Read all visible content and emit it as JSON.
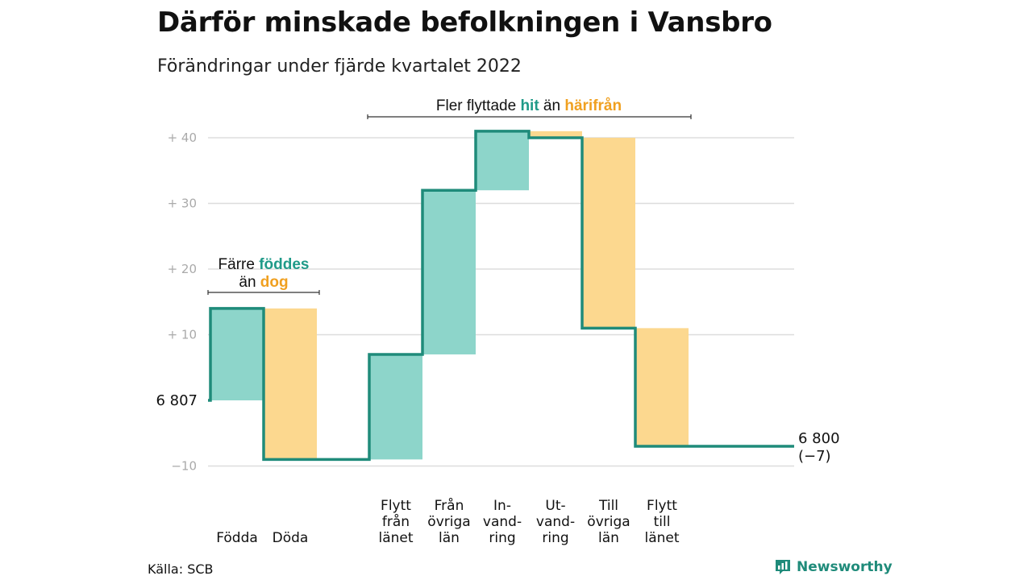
{
  "chart_data": {
    "type": "waterfall",
    "title": "Därför minskade befolkningen i Vansbro",
    "subtitle": "Förändringar under fjärde kvartalet 2022",
    "start_value": 6807,
    "start_label": "6 807",
    "end_value": 6800,
    "end_label": "6 800",
    "end_change_label": "(−7)",
    "y_ticks": [
      {
        "value": 40,
        "label": "+ 40"
      },
      {
        "value": 30,
        "label": "+ 30"
      },
      {
        "value": 20,
        "label": "+ 20"
      },
      {
        "value": 10,
        "label": "+ 10"
      },
      {
        "value": -10,
        "label": "−10"
      }
    ],
    "ylim": [
      -10,
      41
    ],
    "grid": true,
    "categories": [
      {
        "label_lines": [
          "Födda"
        ],
        "change": 14
      },
      {
        "label_lines": [
          "Döda"
        ],
        "change": -23
      },
      {
        "label_lines": [
          "Flytt",
          "från",
          "länet"
        ],
        "change": 16
      },
      {
        "label_lines": [
          "Från",
          "övriga",
          "län"
        ],
        "change": 25
      },
      {
        "label_lines": [
          "In-",
          "vand-",
          "ring"
        ],
        "change": 9
      },
      {
        "label_lines": [
          "Ut-",
          "vand-",
          "ring"
        ],
        "change": -1
      },
      {
        "label_lines": [
          "Till",
          "övriga",
          "län"
        ],
        "change": -29
      },
      {
        "label_lines": [
          "Flytt",
          "till",
          "länet"
        ],
        "change": -18
      }
    ],
    "annotations": [
      {
        "group": "births",
        "line1": [
          {
            "text": "Färre ",
            "role": "plain"
          },
          {
            "text": "föddes",
            "role": "pos"
          }
        ],
        "line2": [
          {
            "text": "än ",
            "role": "plain"
          },
          {
            "text": "dog",
            "role": "neg"
          }
        ]
      },
      {
        "group": "migration",
        "line1": [
          {
            "text": "Fler flyttade ",
            "role": "plain"
          },
          {
            "text": "hit",
            "role": "pos"
          },
          {
            "text": " än ",
            "role": "plain"
          },
          {
            "text": "härifrån",
            "role": "neg"
          }
        ]
      }
    ]
  },
  "colors": {
    "positive_fill": "#8dd5ca",
    "negative_fill": "#fcd88f",
    "line": "#1f8b7a",
    "positive_text": "#1f9a88",
    "negative_text": "#f0a020",
    "grid": "#dddddd"
  },
  "source": "Källa: SCB",
  "logo": {
    "name": "Newsworthy",
    "icon": "bar-chart-logo-icon"
  }
}
